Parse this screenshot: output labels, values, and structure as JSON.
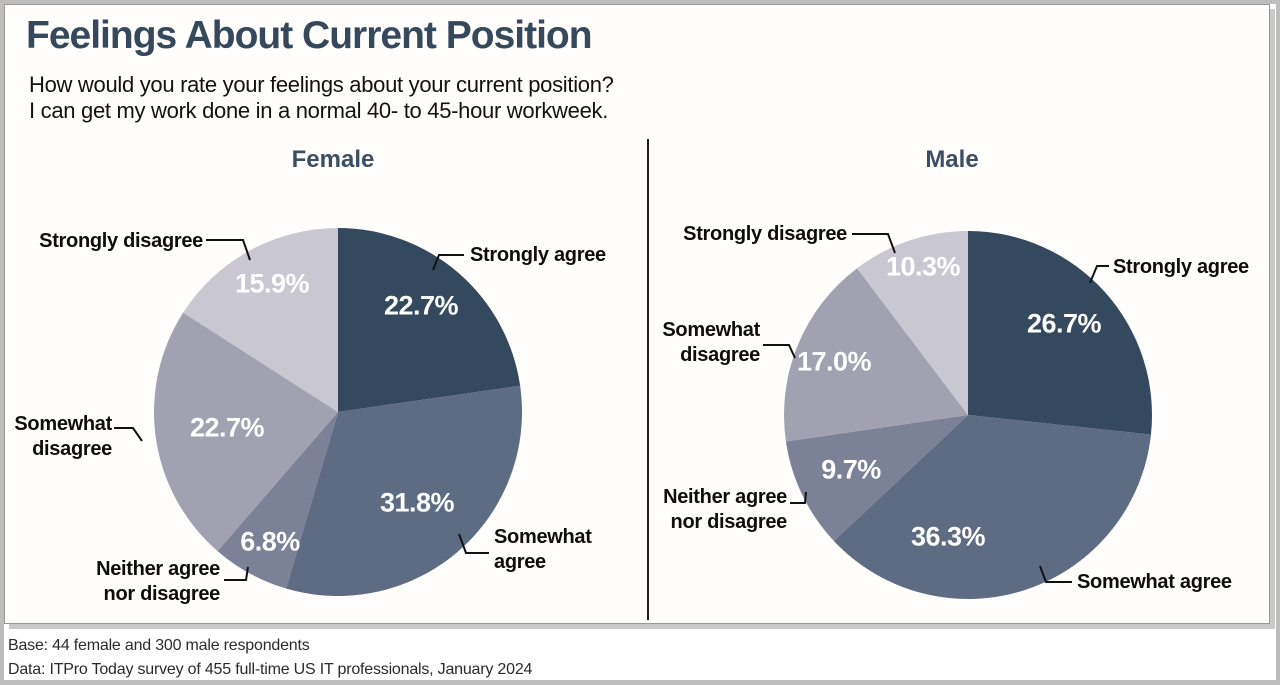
{
  "header": {
    "title": "Feelings About Current Position",
    "subtitle_line1": "How would you rate your feelings about your current position?",
    "subtitle_line2": "I can get my work done in a normal 40- to 45-hour workweek."
  },
  "footer": {
    "base": "Base: 44 female and 300 male respondents",
    "source": "Data: ITPro Today survey of 455 full-time US IT professionals, January 2024"
  },
  "colors": {
    "title": "#36495c",
    "panel_header": "#3b4e63",
    "frame": "#bdbdbd"
  },
  "chart_data": [
    {
      "type": "pie",
      "title": "Female",
      "categories": [
        "Strongly agree",
        "Somewhat agree",
        "Neither agree nor disagree",
        "Somewhat disagree",
        "Strongly disagree"
      ],
      "values": [
        22.7,
        31.8,
        6.8,
        22.7,
        15.9
      ],
      "value_labels": [
        "22.7%",
        "31.8%",
        "6.8%",
        "22.7%",
        "15.9%"
      ],
      "colors": [
        "#35495e",
        "#5d6b83",
        "#7b8196",
        "#a2a1b1",
        "#c9c8d2"
      ],
      "start_angle_deg": 0,
      "direction": "clockwise",
      "legend": "none",
      "labels_outside_with_leader_lines": true
    },
    {
      "type": "pie",
      "title": "Male",
      "categories": [
        "Strongly agree",
        "Somewhat agree",
        "Neither agree nor disagree",
        "Somewhat disagree",
        "Strongly disagree"
      ],
      "values": [
        26.7,
        36.3,
        9.7,
        17.0,
        10.3
      ],
      "value_labels": [
        "26.7%",
        "36.3%",
        "9.7%",
        "17.0%",
        "10.3%"
      ],
      "colors": [
        "#35495e",
        "#5d6b83",
        "#7b8196",
        "#a2a1b1",
        "#c9c8d2"
      ],
      "start_angle_deg": 0,
      "direction": "clockwise",
      "legend": "none",
      "labels_outside_with_leader_lines": true
    }
  ]
}
